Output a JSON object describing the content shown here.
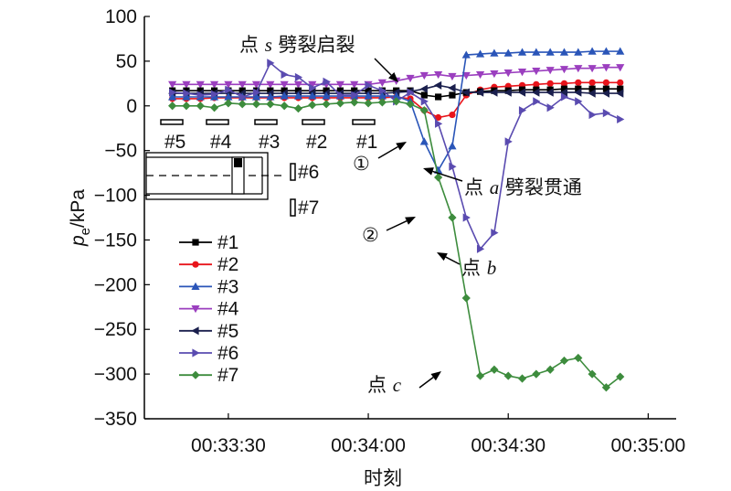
{
  "chart_data": {
    "type": "line",
    "ylabel": "pe/kPa",
    "ylabel_main": "p",
    "ylabel_sub": "e",
    "ylabel_rest": "/kPa",
    "xlabel": "时刻",
    "xlim_seconds_note": "",
    "x_ticks": [
      "00:33:30",
      "00:34:00",
      "00:34:30",
      "00:35:00"
    ],
    "y_ticks": [
      "100",
      "50",
      "0",
      "−50",
      "−100",
      "−150",
      "−200",
      "−250",
      "−300",
      "−350"
    ],
    "ylim": [
      -350,
      100
    ],
    "grid": false,
    "legend_position": "left-bottom",
    "x": [
      "00:33:18",
      "00:33:21",
      "00:33:24",
      "00:33:27",
      "00:33:30",
      "00:33:33",
      "00:33:36",
      "00:33:39",
      "00:33:42",
      "00:33:45",
      "00:33:48",
      "00:33:51",
      "00:33:54",
      "00:33:57",
      "00:34:00",
      "00:34:03",
      "00:34:06",
      "00:34:09",
      "00:34:12",
      "00:34:15",
      "00:34:18",
      "00:34:21",
      "00:34:24",
      "00:34:27",
      "00:34:30",
      "00:34:33",
      "00:34:36",
      "00:34:39",
      "00:34:42",
      "00:34:45",
      "00:34:48",
      "00:34:51",
      "00:34:54"
    ],
    "series": [
      {
        "name": "#1",
        "color": "#000000",
        "marker": "square",
        "values": [
          17,
          17,
          17,
          17,
          17,
          17,
          17,
          17,
          17,
          17,
          17,
          17,
          17,
          17,
          17,
          17,
          17,
          17,
          12,
          10,
          12,
          15,
          16,
          17,
          17,
          18,
          18,
          18,
          19,
          19,
          19,
          19,
          19
        ]
      },
      {
        "name": "#2",
        "color": "#e8141b",
        "marker": "circle",
        "values": [
          8,
          8,
          8,
          9,
          9,
          9,
          9,
          9,
          9,
          9,
          9,
          9,
          9,
          9,
          9,
          9,
          10,
          8,
          -5,
          -13,
          -10,
          12,
          18,
          21,
          22,
          23,
          24,
          25,
          25,
          26,
          26,
          26,
          26
        ]
      },
      {
        "name": "#3",
        "color": "#2a55b8",
        "marker": "triangle-up",
        "values": [
          10,
          10,
          10,
          10,
          10,
          10,
          10,
          10,
          11,
          11,
          11,
          11,
          11,
          11,
          11,
          11,
          11,
          5,
          -40,
          -72,
          -45,
          57,
          58,
          59,
          59,
          60,
          60,
          60,
          60,
          60,
          61,
          61,
          61
        ]
      },
      {
        "name": "#4",
        "color": "#9b3fbf",
        "marker": "triangle-down",
        "values": [
          24,
          24,
          24,
          24,
          24,
          24,
          24,
          24,
          24,
          24,
          24,
          24,
          24,
          24,
          24,
          26,
          28,
          31,
          34,
          35,
          33,
          34,
          35,
          36,
          37,
          38,
          39,
          40,
          41,
          42,
          42,
          43,
          43
        ]
      },
      {
        "name": "#5",
        "color": "#1a1f4d",
        "marker": "triangle-left",
        "values": [
          14,
          14,
          14,
          14,
          14,
          14,
          14,
          14,
          14,
          14,
          14,
          14,
          14,
          14,
          14,
          14,
          15,
          16,
          19,
          23,
          20,
          15,
          15,
          15,
          15,
          15,
          15,
          15,
          15,
          15,
          14,
          14,
          14
        ]
      },
      {
        "name": "#6",
        "color": "#5a4bb0",
        "marker": "triangle-right",
        "values": [
          15,
          14,
          12,
          13,
          18,
          10,
          15,
          48,
          35,
          32,
          20,
          27,
          12,
          12,
          23,
          17,
          5,
          15,
          5,
          -20,
          -68,
          -125,
          -160,
          -142,
          -40,
          -5,
          5,
          -2,
          10,
          5,
          -10,
          -8,
          -15
        ]
      },
      {
        "name": "#7",
        "color": "#3d8c3d",
        "marker": "diamond",
        "values": [
          0,
          0,
          0,
          -2,
          3,
          2,
          2,
          2,
          0,
          -3,
          1,
          2,
          3,
          4,
          3,
          4,
          5,
          2,
          -5,
          -80,
          -125,
          -215,
          -302,
          -295,
          -302,
          -305,
          -300,
          -295,
          -285,
          -282,
          -300,
          -315,
          -303
        ]
      }
    ],
    "annotations": [
      {
        "text_cn": "点",
        "text_it": "s",
        "text_rest": "劈裂启裂"
      },
      {
        "text_cn": "点",
        "text_it": "a",
        "text_rest": "劈裂贯通"
      },
      {
        "text_cn": "点",
        "text_it": "b",
        "text_rest": ""
      },
      {
        "text_cn": "点",
        "text_it": "c",
        "text_rest": ""
      },
      {
        "text": "①"
      },
      {
        "text": "②"
      }
    ],
    "inset": {
      "positions_top": [
        "#5",
        "#4",
        "#3",
        "#2",
        "#1"
      ],
      "positions_side": [
        "#6",
        "#7"
      ]
    }
  }
}
